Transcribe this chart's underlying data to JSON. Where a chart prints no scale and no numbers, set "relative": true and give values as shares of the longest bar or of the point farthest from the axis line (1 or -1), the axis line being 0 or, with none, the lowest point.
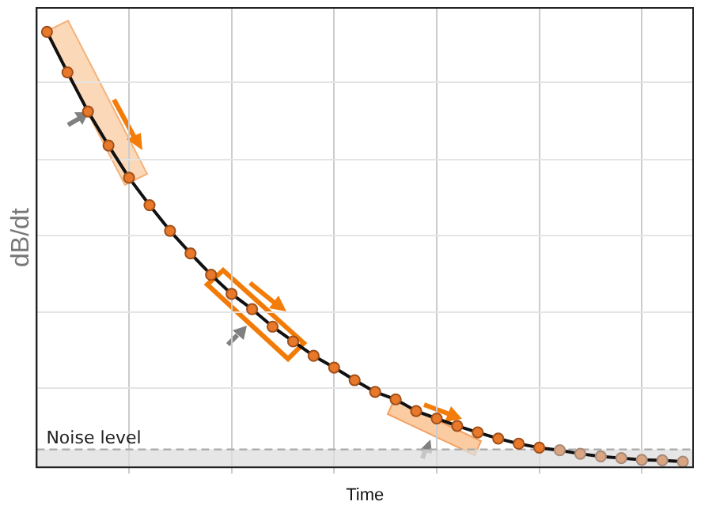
{
  "chart_data": {
    "type": "line",
    "xlabel": "Time",
    "ylabel": "dB/dt",
    "relative": true,
    "grid": true,
    "legend": false,
    "marker": "circle",
    "line_style": "solid",
    "categories": [
      null,
      null,
      null,
      null,
      null,
      null,
      null,
      null,
      null,
      null,
      null,
      null,
      null,
      null,
      null,
      null,
      null,
      null,
      null,
      null,
      null,
      null,
      null,
      null,
      null,
      null,
      null,
      null,
      null,
      null,
      null,
      null
    ],
    "series": [
      {
        "color": "#111111",
        "colors": [
          "#e8792b",
          "#e8792b",
          "#e8792b",
          "#e8792b",
          "#e8792b",
          "#e8792b",
          "#e8792b",
          "#e8792b",
          "#e8792b",
          "#e8792b",
          "#e8792b",
          "#e8792b",
          "#e8792b",
          "#e8792b",
          "#e8792b",
          "#e8792b",
          "#e8792b",
          "#e8792b",
          "#e8792b",
          "#e8792b",
          "#e8792b",
          "#e8792b",
          "#e8792b",
          "#e8792b",
          "#e8792b",
          "#d9a583",
          "#d9a583",
          "#d9a583",
          "#d9a583",
          "#d9a583",
          "#d9a583",
          "#d9a583"
        ],
        "values": [
          1,
          0.907,
          0.817,
          0.739,
          0.665,
          0.602,
          0.543,
          0.491,
          0.442,
          0.398,
          0.363,
          0.323,
          0.289,
          0.256,
          0.229,
          0.2,
          0.173,
          0.156,
          0.129,
          0.112,
          0.095,
          0.08,
          0.066,
          0.054,
          0.045,
          0.039,
          0.031,
          0.025,
          0.021,
          0.017,
          0.016,
          0.013
        ]
      }
    ],
    "ref_lines": [
      {
        "axis": "y",
        "value": 0.041,
        "color": "#aaaaaa",
        "line_style": "dashed"
      }
    ],
    "bands": [
      {
        "axis": "y",
        "from": 0,
        "to": 0.041,
        "label": "Noise level",
        "color": "#dddddd"
      }
    ]
  }
}
